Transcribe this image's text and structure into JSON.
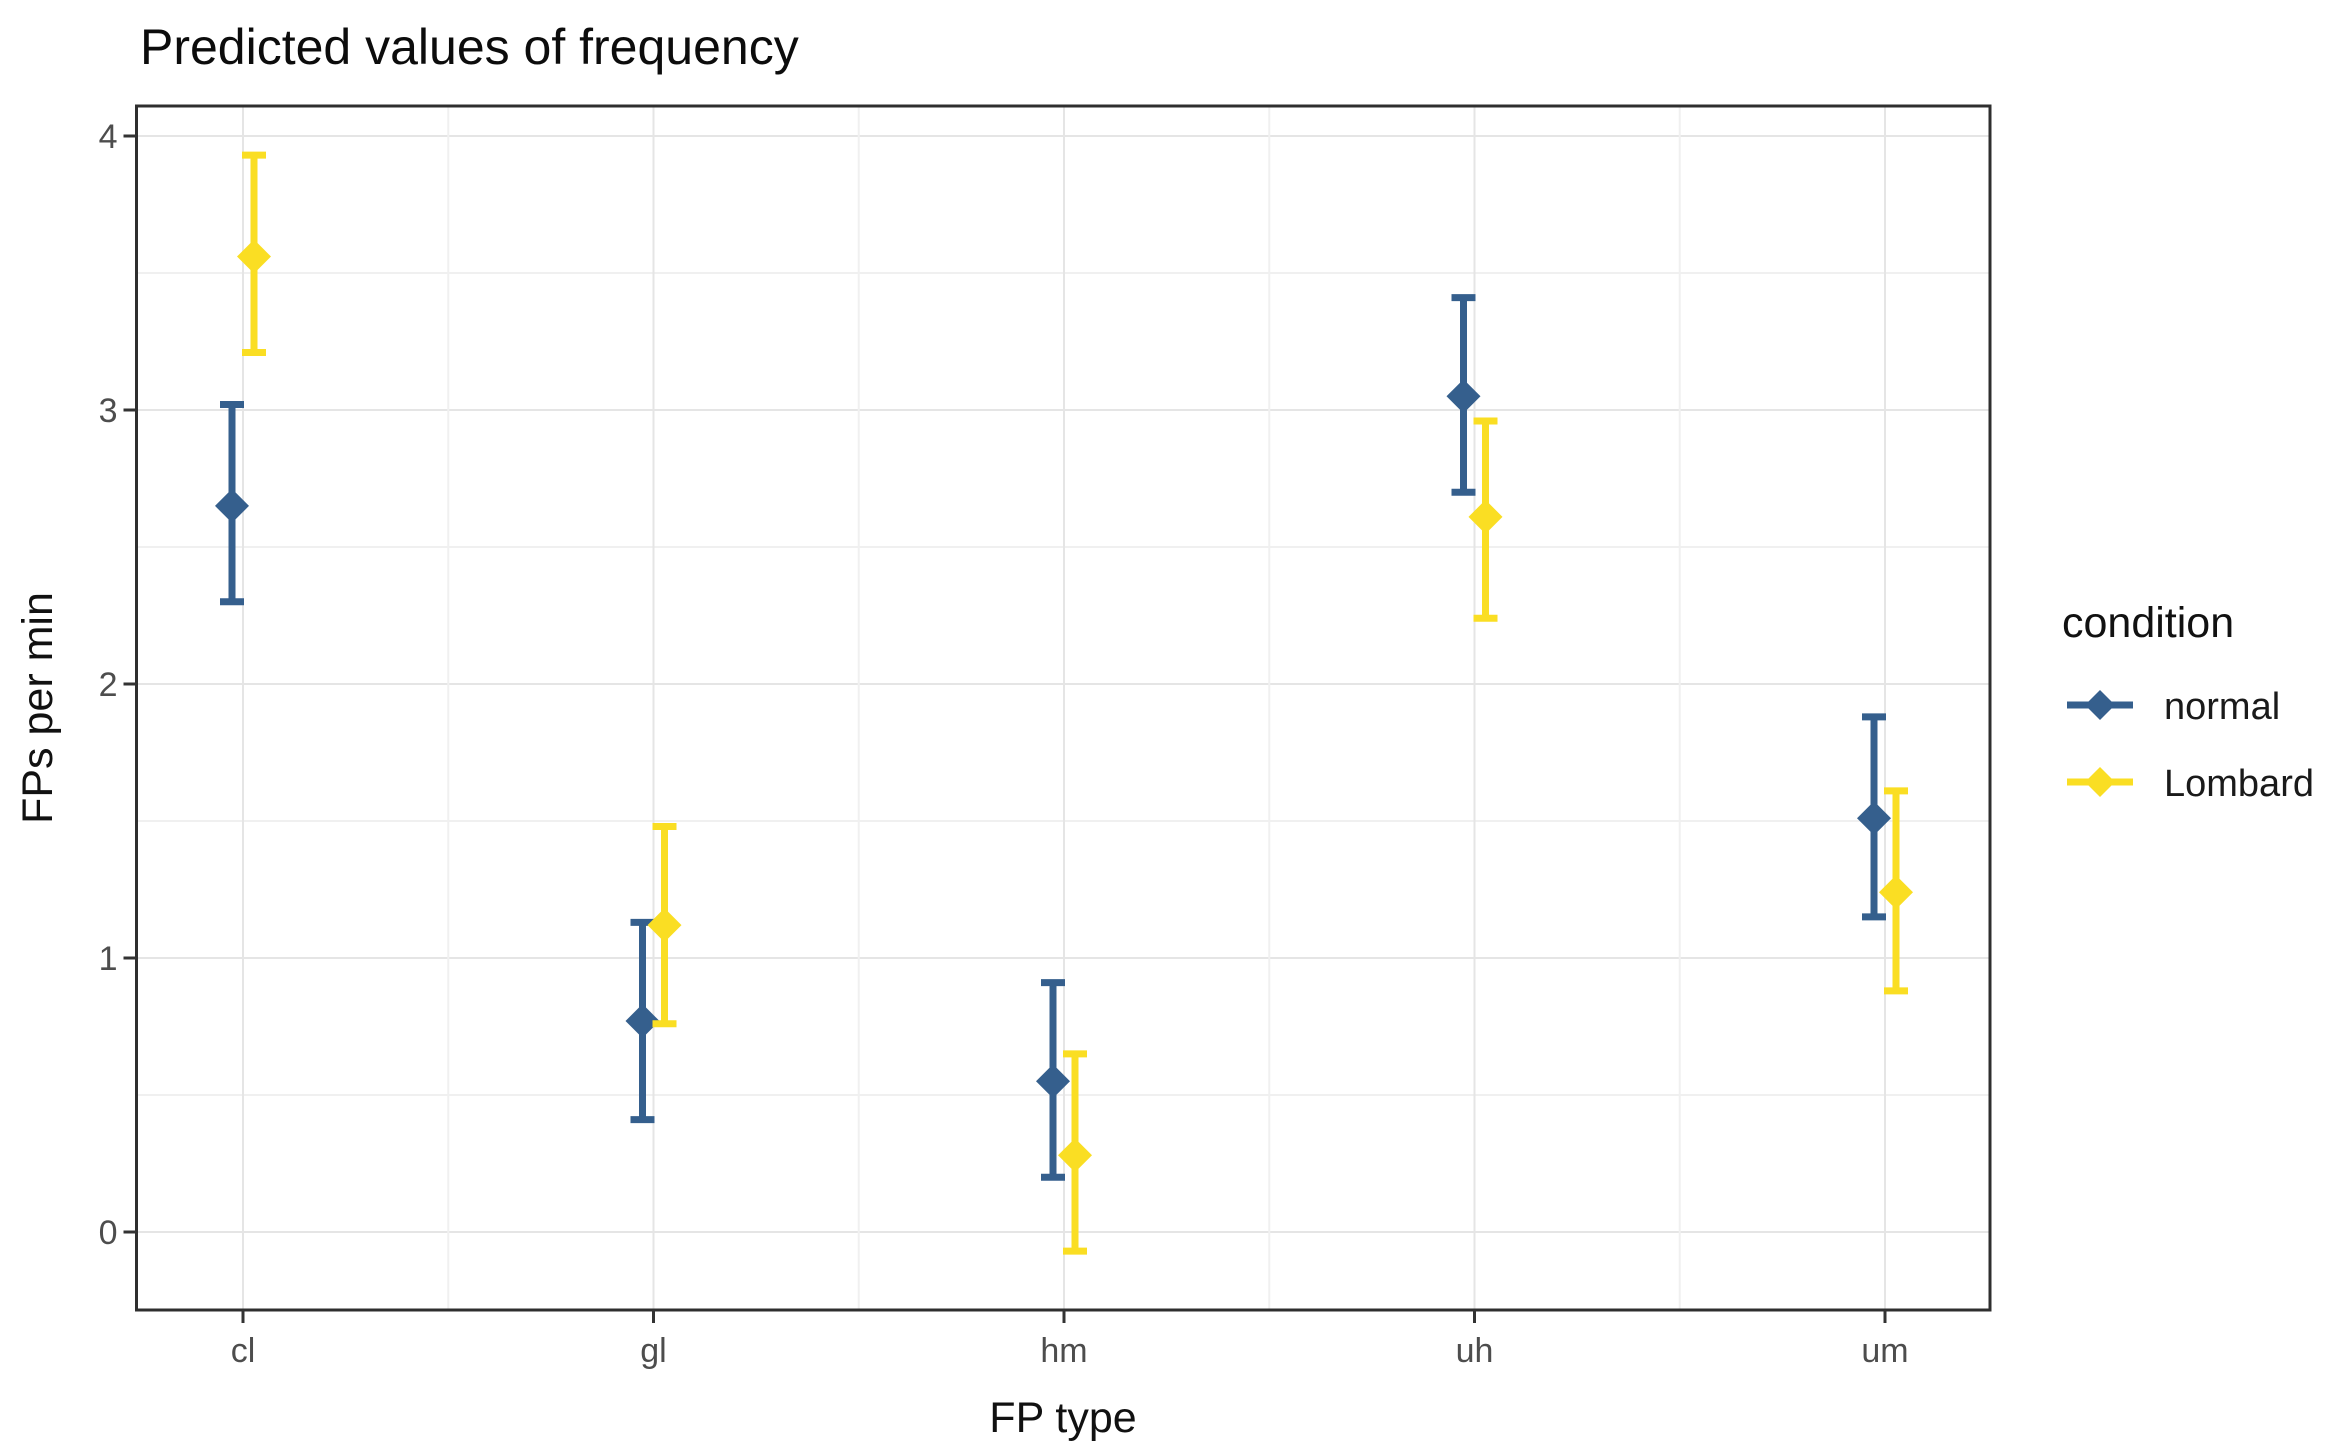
{
  "chart_data": {
    "type": "scatter",
    "title": "Predicted values of frequency",
    "xlabel": "FP type",
    "ylabel": "FPs per min",
    "categories": [
      "cl",
      "gl",
      "hm",
      "uh",
      "um"
    ],
    "y_ticks": [
      0,
      1,
      2,
      3,
      4
    ],
    "ylim": [
      -0.29,
      4.11
    ],
    "grid": true,
    "legend": {
      "title": "condition",
      "position": "right"
    },
    "series": [
      {
        "name": "normal",
        "color": "#355F8D",
        "marker": "diamond",
        "values": [
          2.65,
          0.77,
          0.55,
          3.05,
          1.51
        ],
        "ci_low": [
          2.3,
          0.41,
          0.2,
          2.7,
          1.15
        ],
        "ci_high": [
          3.02,
          1.13,
          0.91,
          3.41,
          1.88
        ]
      },
      {
        "name": "Lombard",
        "color": "#FADE23",
        "marker": "diamond",
        "values": [
          3.56,
          1.12,
          0.28,
          2.61,
          1.24
        ],
        "ci_low": [
          3.21,
          0.76,
          -0.07,
          2.24,
          0.88
        ],
        "ci_high": [
          3.93,
          1.48,
          0.65,
          2.96,
          1.61
        ]
      }
    ]
  }
}
